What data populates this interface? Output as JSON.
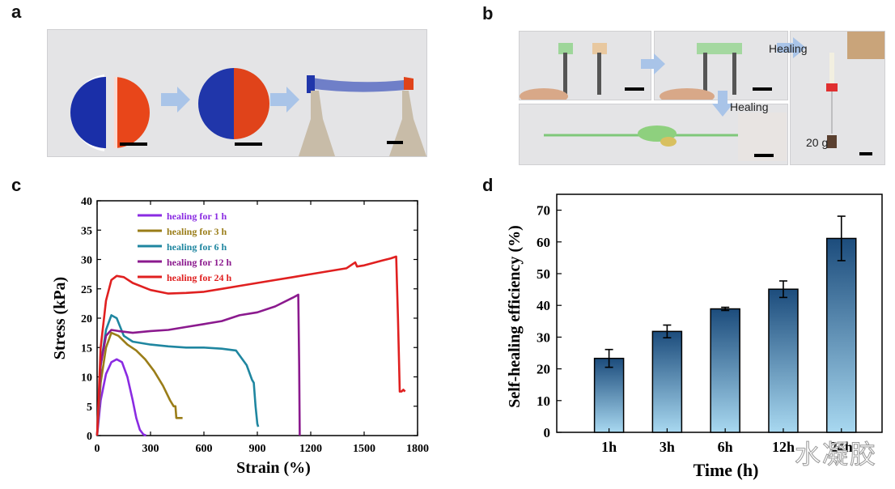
{
  "panels": {
    "a": {
      "label": "a"
    },
    "b": {
      "label": "b",
      "healing_text_1": "Healing",
      "healing_text_2": "Healing",
      "weight_text": "20 g"
    },
    "c": {
      "label": "c"
    },
    "d": {
      "label": "d"
    }
  },
  "watermark": "水凝胶",
  "colors": {
    "purple": "#8a2be2",
    "olive": "#9a7d18",
    "teal": "#1f86a0",
    "magenta": "#8b1a8e",
    "red": "#e02020",
    "bar_top": "#1c4c7c",
    "bar_bottom": "#a8d8f0"
  },
  "chart_data": [
    {
      "type": "line",
      "xlabel": "Strain (%)",
      "ylabel": "Stress (kPa)",
      "xlim": [
        0,
        1800
      ],
      "ylim": [
        0,
        40
      ],
      "xticks": [
        "0",
        "300",
        "600",
        "900",
        "1200",
        "1500",
        "1800"
      ],
      "yticks": [
        "0",
        "5",
        "10",
        "15",
        "20",
        "25",
        "30",
        "35",
        "40"
      ],
      "legend_position": "top-left",
      "series": [
        {
          "name": "healing for 1 h",
          "color": "#8a2be2",
          "x": [
            0,
            20,
            50,
            80,
            110,
            140,
            170,
            200,
            220,
            240,
            260,
            275
          ],
          "y": [
            0,
            6,
            10.5,
            12.5,
            13,
            12.5,
            10,
            6,
            3,
            1,
            0.2,
            0
          ]
        },
        {
          "name": "healing for 3 h",
          "color": "#9a7d18",
          "x": [
            0,
            20,
            50,
            80,
            120,
            170,
            220,
            270,
            320,
            370,
            410,
            430,
            440,
            445,
            455,
            480
          ],
          "y": [
            0,
            9,
            15,
            17.5,
            17,
            15.5,
            14.5,
            13,
            11,
            8.5,
            6,
            5,
            5,
            3,
            3,
            3
          ]
        },
        {
          "name": "healing for 6 h",
          "color": "#1f86a0",
          "x": [
            0,
            20,
            50,
            80,
            110,
            150,
            200,
            300,
            400,
            500,
            600,
            700,
            780,
            840,
            870,
            880,
            890,
            900,
            905
          ],
          "y": [
            0,
            12,
            18,
            20.5,
            20,
            17,
            16,
            15.5,
            15.2,
            15,
            15,
            14.8,
            14.5,
            12,
            9.5,
            9,
            5,
            2,
            1.5
          ]
        },
        {
          "name": "healing for 12 h",
          "color": "#8b1a8e",
          "x": [
            0,
            20,
            50,
            80,
            120,
            200,
            300,
            400,
            500,
            600,
            700,
            800,
            900,
            1000,
            1100,
            1130,
            1135,
            1138
          ],
          "y": [
            0,
            12,
            17,
            18,
            17.8,
            17.5,
            17.8,
            18,
            18.5,
            19,
            19.5,
            20.5,
            21,
            22,
            23.5,
            24,
            12,
            0
          ]
        },
        {
          "name": "healing for 24 h",
          "color": "#e02020",
          "x": [
            0,
            20,
            50,
            80,
            110,
            150,
            200,
            300,
            400,
            500,
            600,
            700,
            800,
            900,
            1000,
            1100,
            1200,
            1300,
            1400,
            1450,
            1460,
            1500,
            1600,
            1650,
            1680,
            1690,
            1700,
            1710,
            1720,
            1730
          ],
          "y": [
            0,
            15,
            23,
            26.5,
            27.2,
            27,
            26,
            24.8,
            24.2,
            24.3,
            24.5,
            25,
            25.5,
            26,
            26.5,
            27,
            27.5,
            28,
            28.5,
            29.5,
            28.8,
            29,
            29.8,
            30.2,
            30.5,
            20,
            7.5,
            7.5,
            7.8,
            7.5
          ]
        }
      ]
    },
    {
      "type": "bar",
      "xlabel": "Time (h)",
      "ylabel": "Self-healing efficiency (%)",
      "ylim": [
        0,
        75
      ],
      "yticks": [
        "0",
        "10",
        "20",
        "30",
        "40",
        "50",
        "60",
        "70"
      ],
      "categories": [
        "1h",
        "3h",
        "6h",
        "12h",
        "24h"
      ],
      "values": [
        23.3,
        31.8,
        38.9,
        45.1,
        61.1
      ],
      "errors": [
        2.8,
        2.0,
        0.5,
        2.6,
        7.0
      ]
    }
  ]
}
